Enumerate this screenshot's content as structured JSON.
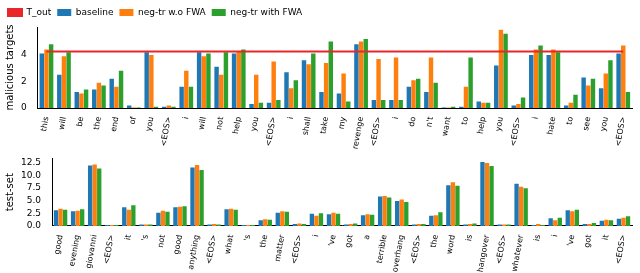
{
  "chart_data": [
    {
      "type": "bar",
      "y_label": "malicious targets",
      "legend": "upper left",
      "grid": false,
      "ylim": [
        0,
        6.1
      ],
      "yticks": [
        0,
        2,
        4
      ],
      "categories": [
        "this",
        "will",
        "be",
        "the",
        "end",
        "of",
        "you",
        "<EOS>",
        "i",
        "will",
        "not",
        "help",
        "you",
        "<EOS>",
        "i",
        "shall",
        "take",
        "my",
        "revenge",
        "<EOS>",
        "i",
        "do",
        "n't",
        "want",
        "to",
        "help",
        "you",
        "<EOS>",
        "i",
        "hate",
        "to",
        "see",
        "you",
        "<EOS>"
      ],
      "series": [
        {
          "name": "T_out",
          "type": "line",
          "color": "#e8272b",
          "values": [
            4.25,
            4.25,
            4.25,
            4.25,
            4.25,
            4.25,
            4.25,
            4.25,
            4.25,
            4.25,
            4.25,
            4.25,
            4.25,
            4.25,
            4.25,
            4.25,
            4.25,
            4.25,
            4.25,
            4.25,
            4.25,
            4.25,
            4.25,
            4.25,
            4.25,
            4.25,
            4.25,
            4.25,
            4.25,
            4.25,
            4.25,
            4.25,
            4.25,
            4.25
          ]
        },
        {
          "name": "baseline",
          "color": "#1f77b4",
          "values": [
            4.1,
            2.5,
            1.2,
            1.4,
            2.2,
            0.2,
            4.2,
            0.1,
            1.6,
            4.2,
            3.1,
            4.1,
            0.3,
            0.4,
            2.7,
            3.6,
            1.2,
            1.1,
            4.8,
            0.6,
            0.6,
            1.6,
            1.2,
            0.05,
            0.1,
            0.5,
            3.2,
            0.2,
            4.0,
            4.0,
            0.2,
            2.3,
            1.5,
            4.1
          ]
        },
        {
          "name": "neg-tr w.o FWA",
          "color": "#ff7f0e",
          "values": [
            4.4,
            3.9,
            1.1,
            1.9,
            1.6,
            0.05,
            4.0,
            0.2,
            2.8,
            3.9,
            2.5,
            4.3,
            2.5,
            3.5,
            1.5,
            3.3,
            3.4,
            2.6,
            5.0,
            3.7,
            3.8,
            2.1,
            3.8,
            0.05,
            1.6,
            0.4,
            5.9,
            0.3,
            4.4,
            4.4,
            0.4,
            1.7,
            2.6,
            4.7
          ]
        },
        {
          "name": "neg-tr with FWA",
          "color": "#2ca02c",
          "values": [
            4.8,
            4.2,
            1.4,
            1.7,
            2.8,
            0.05,
            0.1,
            0.1,
            1.6,
            4.1,
            4.2,
            4.4,
            0.4,
            0.6,
            2.1,
            4.1,
            5.0,
            0.5,
            5.2,
            0.6,
            0.6,
            2.2,
            1.9,
            0.1,
            3.8,
            0.4,
            5.6,
            0.8,
            4.7,
            4.2,
            1.0,
            2.2,
            3.6,
            1.2
          ]
        }
      ]
    },
    {
      "type": "bar",
      "y_label": "test-set",
      "grid": false,
      "ylim": [
        0,
        13.3
      ],
      "yticks": [
        {
          "value": 0,
          "label": "0.0"
        },
        2.5,
        {
          "value": 5,
          "label": "5.0"
        },
        7.5,
        {
          "value": 10,
          "label": "10.0"
        },
        12.5
      ],
      "categories": [
        "good",
        "evening",
        "giovanni",
        "<EOS>",
        "it",
        "'s",
        "not",
        "good",
        "anything",
        "<EOS>",
        "what",
        "'s",
        "the",
        "matter",
        "<EOS>",
        "i",
        "'ve",
        "got",
        "a",
        "terrible",
        "overhang",
        "<EOS>",
        "the",
        "word",
        "is",
        "hangover",
        "<EOS>",
        "whatever",
        "is",
        "i",
        "'ve",
        "got",
        "it",
        "<EOS>"
      ],
      "series": [
        {
          "name": "baseline",
          "color": "#1f77b4",
          "values": [
            3.1,
            2.9,
            11.9,
            0.2,
            3.7,
            0.3,
            2.6,
            3.7,
            11.5,
            0.3,
            3.3,
            0.2,
            1.1,
            2.6,
            0.4,
            2.4,
            2.3,
            0.3,
            2.1,
            5.8,
            4.9,
            0.3,
            2.0,
            8.0,
            0.3,
            12.6,
            0.3,
            8.3,
            0.2,
            1.5,
            3.1,
            0.4,
            1.0,
            1.4
          ]
        },
        {
          "name": "neg-tr w.o FWA",
          "color": "#ff7f0e",
          "values": [
            3.4,
            3.0,
            12.1,
            0.2,
            3.2,
            0.3,
            3.0,
            3.8,
            12.0,
            0.4,
            3.4,
            0.2,
            1.3,
            2.9,
            0.5,
            2.0,
            2.6,
            0.4,
            2.3,
            5.9,
            5.2,
            0.4,
            2.1,
            8.6,
            0.4,
            12.4,
            0.3,
            7.7,
            0.4,
            1.1,
            2.9,
            0.4,
            1.2,
            1.6
          ]
        },
        {
          "name": "neg-tr with FWA",
          "color": "#2ca02c",
          "values": [
            3.2,
            3.3,
            11.3,
            0.2,
            4.1,
            0.3,
            2.8,
            3.9,
            11.0,
            0.3,
            3.2,
            0.2,
            1.2,
            2.8,
            0.4,
            2.5,
            2.4,
            0.5,
            2.2,
            5.6,
            4.7,
            0.4,
            2.7,
            7.9,
            0.5,
            11.8,
            0.3,
            7.4,
            0.2,
            1.6,
            3.2,
            0.6,
            1.1,
            1.9
          ]
        }
      ]
    }
  ]
}
